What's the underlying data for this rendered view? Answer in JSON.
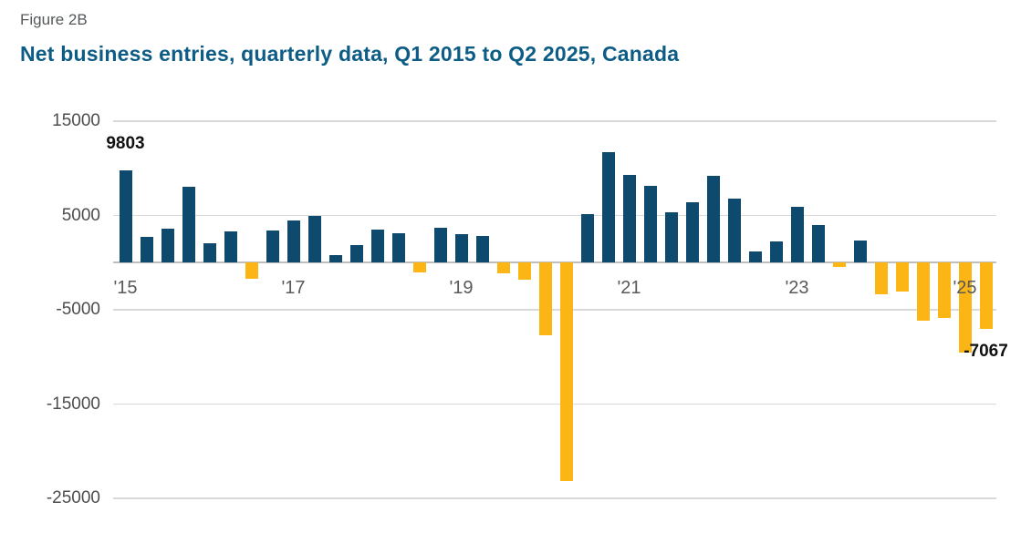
{
  "figure": {
    "label": "Figure 2B",
    "title": "Net business entries, quarterly data, Q1 2015 to Q2 2025, Canada"
  },
  "chart_data": {
    "type": "bar",
    "title": "Net business entries, quarterly data, Q1 2015 to Q2 2025, Canada",
    "xlabel": "",
    "ylabel": "",
    "ylim": [
      -25000,
      15000
    ],
    "yticks": [
      15000,
      5000,
      -5000,
      -15000,
      -25000
    ],
    "grid": "horizontal",
    "legend": "none",
    "categories": [
      "Q1 2015",
      "Q2 2015",
      "Q3 2015",
      "Q4 2015",
      "Q1 2016",
      "Q2 2016",
      "Q3 2016",
      "Q4 2016",
      "Q1 2017",
      "Q2 2017",
      "Q3 2017",
      "Q4 2017",
      "Q1 2018",
      "Q2 2018",
      "Q3 2018",
      "Q4 2018",
      "Q1 2019",
      "Q2 2019",
      "Q3 2019",
      "Q4 2019",
      "Q1 2020",
      "Q2 2020",
      "Q3 2020",
      "Q4 2020",
      "Q1 2021",
      "Q2 2021",
      "Q3 2021",
      "Q4 2021",
      "Q1 2022",
      "Q2 2022",
      "Q3 2022",
      "Q4 2022",
      "Q1 2023",
      "Q2 2023",
      "Q3 2023",
      "Q4 2023",
      "Q1 2024",
      "Q2 2024",
      "Q3 2024",
      "Q4 2024",
      "Q1 2025",
      "Q2 2025"
    ],
    "values": [
      9803,
      2700,
      3600,
      8000,
      2100,
      3300,
      -1700,
      3400,
      4500,
      5000,
      800,
      1900,
      3500,
      3100,
      -1000,
      3700,
      3000,
      2800,
      -1100,
      -1800,
      -7700,
      -23200,
      5100,
      11700,
      9300,
      8100,
      5300,
      6400,
      9200,
      6800,
      1200,
      2200,
      5900,
      4000,
      -500,
      2300,
      -3400,
      -3100,
      -6200,
      -5900,
      -9500,
      -7067
    ],
    "xticks": [
      {
        "index": 0,
        "label": "'15"
      },
      {
        "index": 8,
        "label": "'17"
      },
      {
        "index": 16,
        "label": "'19"
      },
      {
        "index": 24,
        "label": "'21"
      },
      {
        "index": 32,
        "label": "'23"
      },
      {
        "index": 40,
        "label": "'25"
      }
    ],
    "annotations": [
      {
        "index": 0,
        "label": "9803",
        "placement": "above"
      },
      {
        "index": 41,
        "label": "-7067",
        "placement": "below"
      }
    ],
    "colors": {
      "positive": "#0e4a6d",
      "negative": "#fbb615",
      "gridline": "#d9d9d9",
      "zero_line": "#bfbfbf",
      "title": "#0d5c85",
      "figure_label": "#54585a",
      "tick_label": "#4d4d4d",
      "annotation": "#111111"
    }
  }
}
